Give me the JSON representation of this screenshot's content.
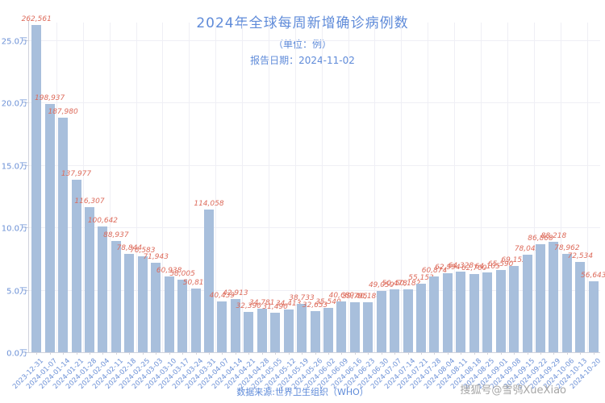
{
  "header": {
    "title": "2024年全球每周新增确诊病例数",
    "subtitle": "（单位：例）",
    "report_date": "报告日期：2024-11-02"
  },
  "footer": {
    "source": "数据来源:世界卫生组织（WHO）",
    "watermark": "搜狐号@雪鸮XueXiao"
  },
  "colors": {
    "bar": "#a8bfdc",
    "value_label": "#dd6b5b",
    "axis_text": "#6b90d6",
    "title_text": "#5f8bd9",
    "grid": "#efeff5",
    "axis_line": "#cfd2dc",
    "watermark": "#a6a6a6",
    "background": "#ffffff"
  },
  "chart_data": {
    "type": "bar",
    "title": "2024年全球每周新增确诊病例数",
    "subtitle": "（单位：例） 报告日期：2024-11-02",
    "xlabel": "",
    "ylabel": "",
    "unit": "例",
    "grid": true,
    "legend": false,
    "ylim": [
      0,
      270000
    ],
    "y_ticks": {
      "labels": [
        "0.0万",
        "5.0万",
        "10.0万",
        "15.0万",
        "20.0万",
        "25.0万"
      ],
      "values": [
        0,
        50000,
        100000,
        150000,
        200000,
        250000
      ]
    },
    "categories": [
      "2023-12-31",
      "2024-01-07",
      "2024-01-14",
      "2024-01-21",
      "2024-01-28",
      "2024-02-04",
      "2024-02-11",
      "2024-02-18",
      "2024-02-25",
      "2024-03-03",
      "2024-03-10",
      "2024-03-17",
      "2024-03-24",
      "2024-03-31",
      "2024-04-07",
      "2024-04-14",
      "2024-04-21",
      "2024-04-28",
      "2024-05-05",
      "2024-05-12",
      "2024-05-19",
      "2024-05-26",
      "2024-06-02",
      "2024-06-09",
      "2024-06-16",
      "2024-06-23",
      "2024-06-30",
      "2024-07-07",
      "2024-07-14",
      "2024-07-21",
      "2024-07-28",
      "2024-08-04",
      "2024-08-11",
      "2024-08-18",
      "2024-08-25",
      "2024-09-01",
      "2024-09-08",
      "2024-09-15",
      "2024-09-22",
      "2024-09-29",
      "2024-10-06",
      "2024-10-13",
      "2024-10-20"
    ],
    "values": [
      262561,
      198937,
      187980,
      137977,
      116307,
      100642,
      88937,
      78844,
      76583,
      71943,
      60938,
      58005,
      50816,
      114058,
      40439,
      42913,
      32390,
      34781,
      31490,
      34413,
      38733,
      32653,
      35540,
      40689,
      39795,
      40186,
      49050,
      50478,
      50182,
      55153,
      60874,
      62994,
      64328,
      62700,
      64105,
      65590,
      69152,
      78043,
      86868,
      88218,
      78962,
      72534,
      56643
    ]
  }
}
